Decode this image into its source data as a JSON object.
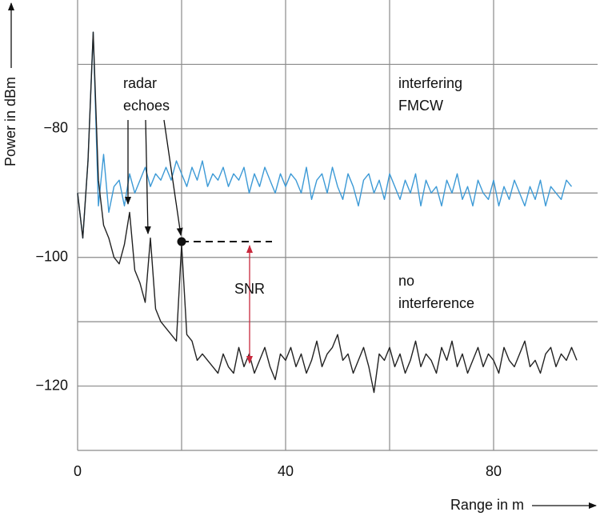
{
  "chart_data": {
    "type": "line",
    "x_label": "Range in m",
    "y_label": "Power in dBm",
    "annotations": [
      {
        "lines": [
          "radar",
          "echoes"
        ],
        "color": "#111111"
      },
      {
        "lines": [
          "interfering",
          "FMCW"
        ],
        "color": "#3d9ad6"
      },
      {
        "lines": [
          "no",
          "interference"
        ],
        "color": "#111111"
      },
      {
        "lines": [
          "SNR"
        ],
        "color": "#c8283c"
      }
    ],
    "x": [
      0,
      1,
      2,
      3,
      4,
      5,
      6,
      7,
      8,
      9,
      10,
      11,
      12,
      13,
      14,
      15,
      16,
      17,
      18,
      19,
      20,
      21,
      22,
      23,
      24,
      25,
      26,
      27,
      28,
      29,
      30,
      31,
      32,
      33,
      34,
      35,
      36,
      37,
      38,
      39,
      40,
      41,
      42,
      43,
      44,
      45,
      46,
      47,
      48,
      49,
      50,
      51,
      52,
      53,
      54,
      55,
      56,
      57,
      58,
      59,
      60,
      61,
      62,
      63,
      64,
      65,
      66,
      67,
      68,
      69,
      70,
      71,
      72,
      73,
      74,
      75,
      76,
      77,
      78,
      79,
      80,
      81,
      82,
      83,
      84,
      85,
      86,
      87,
      88,
      89,
      90,
      91,
      92,
      93,
      94,
      95,
      96
    ],
    "series": [
      {
        "name": "interfering FMCW",
        "color": "#3d9ad6",
        "values": [
          -90,
          -97,
          -85,
          -65,
          -92,
          -84,
          -93,
          -89,
          -88,
          -92,
          -87,
          -90,
          -88,
          -86,
          -89,
          -87,
          -88,
          -86,
          -88,
          -85,
          -87,
          -89,
          -86,
          -88,
          -85,
          -89,
          -87,
          -88,
          -86,
          -89,
          -87,
          -88,
          -86,
          -90,
          -87,
          -89,
          -86,
          -88,
          -90,
          -87,
          -89,
          -87,
          -88,
          -90,
          -86,
          -91,
          -88,
          -87,
          -90,
          -86,
          -89,
          -91,
          -87,
          -89,
          -92,
          -88,
          -87,
          -90,
          -88,
          -91,
          -87,
          -89,
          -91,
          -88,
          -90,
          -87,
          -92,
          -88,
          -90,
          -89,
          -92,
          -88,
          -90,
          -87,
          -91,
          -89,
          -92,
          -88,
          -90,
          -91,
          -88,
          -92,
          -89,
          -91,
          -88,
          -90,
          -92,
          -89,
          -91,
          -88,
          -92,
          -89,
          -90,
          -91,
          -88,
          -89,
          null
        ]
      },
      {
        "name": "no interference",
        "color": "#222222",
        "values": [
          -90,
          -97,
          -85,
          -65,
          -88,
          -95,
          -97,
          -100,
          -101,
          -98,
          -93,
          -102,
          -104,
          -107,
          -97,
          -108,
          -110,
          -111,
          -112,
          -113,
          -98,
          -112,
          -113,
          -116,
          -115,
          -116,
          -117,
          -118,
          -115,
          -117,
          -118,
          -114,
          -117,
          -115,
          -118,
          -116,
          -114,
          -117,
          -119,
          -115,
          -116,
          -114,
          -117,
          -115,
          -118,
          -116,
          -113,
          -117,
          -115,
          -114,
          -112,
          -116,
          -115,
          -118,
          -116,
          -114,
          -117,
          -121,
          -115,
          -116,
          -114,
          -117,
          -115,
          -118,
          -116,
          -113,
          -117,
          -115,
          -116,
          -118,
          -114,
          -116,
          -113,
          -117,
          -115,
          -118,
          -116,
          -114,
          -117,
          -115,
          -116,
          -118,
          -114,
          -116,
          -117,
          -115,
          -113,
          -117,
          -116,
          -118,
          -115,
          -114,
          -117,
          -115,
          -116,
          -114,
          -116
        ]
      }
    ],
    "xlim": [
      0,
      100
    ],
    "ylim": [
      -130,
      -60
    ],
    "xticks": [
      0,
      {
        "value": 20,
        "label": null
      },
      40,
      {
        "value": 60,
        "label": null
      },
      80
    ],
    "yticks": [
      {
        "value": -130,
        "label": null
      },
      {
        "value": -120,
        "label": "−120"
      },
      {
        "value": -110,
        "label": null
      },
      {
        "value": -100,
        "label": "−100"
      },
      {
        "value": -90,
        "label": null
      },
      {
        "value": -80,
        "label": "−80"
      },
      {
        "value": -70,
        "label": null
      }
    ],
    "grid": true
  }
}
